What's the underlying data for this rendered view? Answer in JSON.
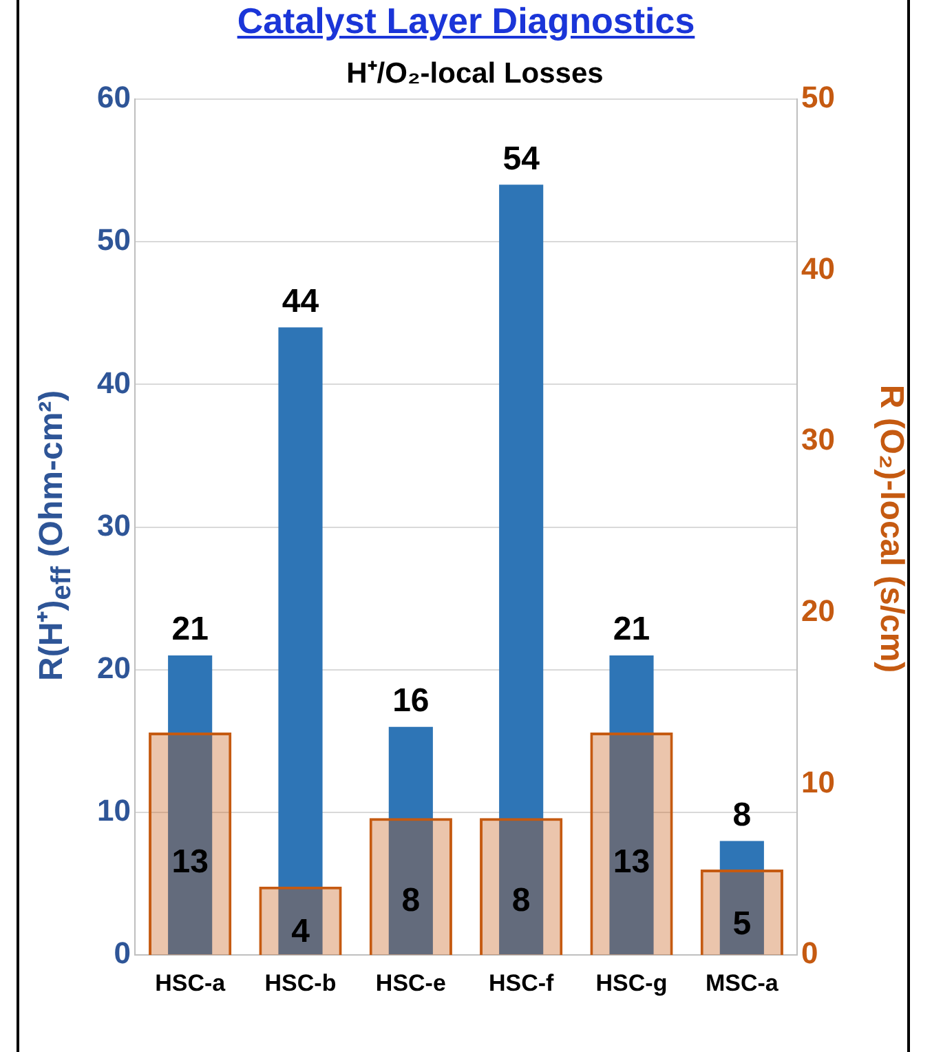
{
  "chart_data": {
    "type": "bar",
    "title": "Catalyst Layer Diagnostics",
    "subtitle": "H⁺/O₂-local Losses",
    "ylabel": "R(H⁺)$_{eff}$ (Ohm-cm²)",
    "y2label": "R (O₂)-local (s/cm)",
    "categories": [
      "HSC-a",
      "HSC-b",
      "HSC-e",
      "HSC-f",
      "HSC-g",
      "MSC-a"
    ],
    "series": [
      {
        "color": "#2e75b6",
        "values": [
          21,
          44,
          16,
          54,
          21,
          8
        ]
      },
      {
        "color": "#c55a11",
        "axis": "y2",
        "values": [
          13,
          4,
          8,
          8,
          13,
          5
        ]
      }
    ],
    "ylim": [
      0,
      60
    ],
    "yticks": [
      0,
      10,
      20,
      30,
      40,
      50,
      60
    ],
    "y2lim": [
      0,
      50
    ],
    "y2ticks": [
      0,
      10,
      20,
      30,
      40,
      50
    ],
    "grid": "y",
    "legend": false,
    "data_labels": true
  }
}
